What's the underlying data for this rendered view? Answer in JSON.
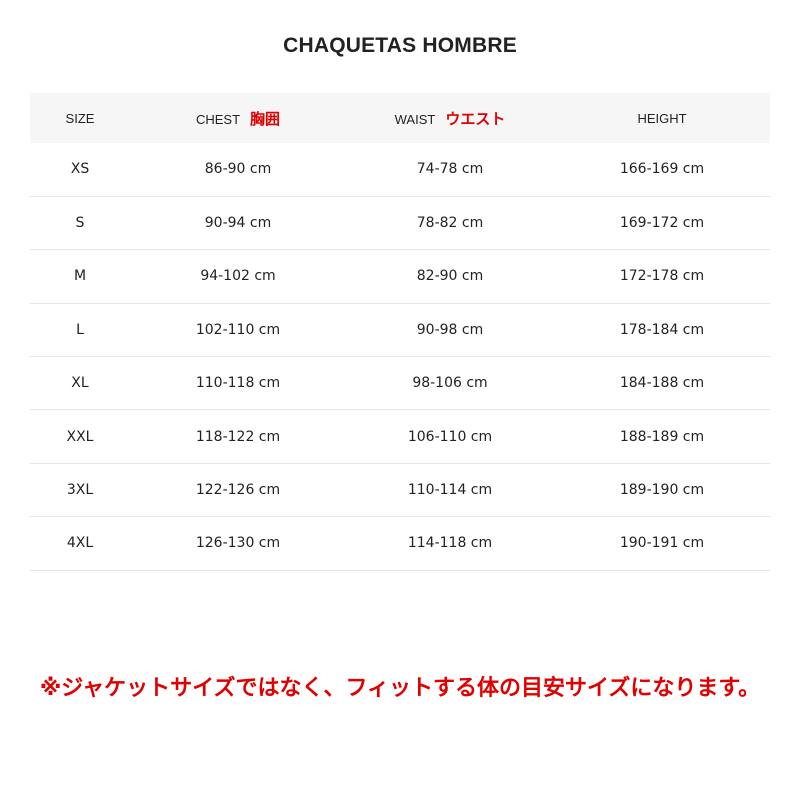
{
  "title": "CHAQUETAS HOMBRE",
  "headers": [
    {
      "label": "SIZE",
      "jp": ""
    },
    {
      "label": "CHEST",
      "jp": "胸囲"
    },
    {
      "label": "WAIST",
      "jp": "ウエスト"
    },
    {
      "label": "HEIGHT",
      "jp": ""
    }
  ],
  "rows": [
    [
      "XS",
      "86-90 cm",
      "74-78 cm",
      "166-169 cm"
    ],
    [
      "S",
      "90-94 cm",
      "78-82 cm",
      "169-172 cm"
    ],
    [
      "M",
      "94-102 cm",
      "82-90 cm",
      "172-178 cm"
    ],
    [
      "L",
      "102-110 cm",
      "90-98 cm",
      "178-184 cm"
    ],
    [
      "XL",
      "110-118 cm",
      "98-106 cm",
      "184-188 cm"
    ],
    [
      "XXL",
      "118-122 cm",
      "106-110 cm",
      "188-189 cm"
    ],
    [
      "3XL",
      "122-126 cm",
      "110-114 cm",
      "189-190 cm"
    ],
    [
      "4XL",
      "126-130 cm",
      "114-118 cm",
      "190-191 cm"
    ]
  ],
  "note": "※ジャケットサイズではなく、フィットする体の目安サイズになります。",
  "colors": {
    "accent_red": "#e00000",
    "header_bg": "#f6f6f6"
  }
}
